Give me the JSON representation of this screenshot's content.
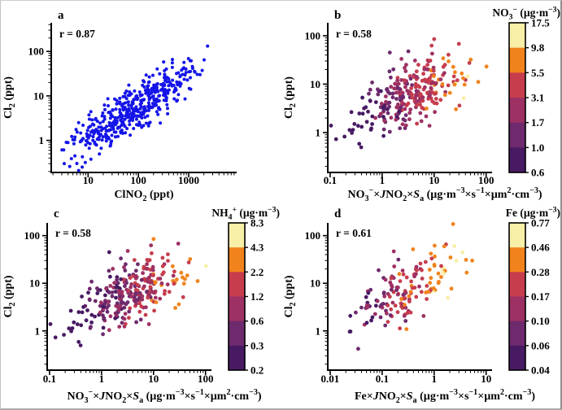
{
  "figure": {
    "background": "#ffffff",
    "axis_color": "#000000",
    "text_color": "#000000"
  },
  "palette": [
    "#471a63",
    "#6e2a6d",
    "#9d3163",
    "#c63d4d",
    "#f0831c",
    "#f8efa8"
  ],
  "chart_data": [
    {
      "id": "a",
      "type": "scatter",
      "row": "top",
      "letter": "a",
      "corr_label": "r = 0.87",
      "xlabel": [
        {
          "t": "ClNO"
        },
        {
          "t": "2",
          "sub": true
        },
        {
          "t": " (ppt)"
        }
      ],
      "ylabel": [
        {
          "t": "Cl"
        },
        {
          "t": "2",
          "sub": true
        },
        {
          "t": " (ppt)"
        }
      ],
      "xlim": [
        1.85,
        9000
      ],
      "ylim": [
        0.19,
        440
      ],
      "x_ticks": [
        {
          "v": 10,
          "label": "10"
        },
        {
          "v": 100,
          "label": "100"
        },
        {
          "v": 1000,
          "label": "1000"
        }
      ],
      "y_ticks": [
        {
          "v": 1,
          "label": "1"
        },
        {
          "v": 10,
          "label": "10"
        },
        {
          "v": 100,
          "label": "100"
        }
      ],
      "point_color": "#1414e8",
      "point_radius": 2.0,
      "cloud": {
        "n": 460,
        "seed": 101,
        "mx": 1.95,
        "sx": 0.62,
        "my": 0.72,
        "sy": 0.52,
        "r": 0.87
      },
      "colorbar": null,
      "color_rule": null
    },
    {
      "id": "b",
      "type": "scatter",
      "row": "top",
      "letter": "b",
      "corr_label": "r = 0.58",
      "xlabel": [
        {
          "t": "NO"
        },
        {
          "t": "3",
          "sub": true
        },
        {
          "t": "−",
          "sup": true
        },
        {
          "t": "×"
        },
        {
          "t": "J",
          "i": true
        },
        {
          "t": "NO"
        },
        {
          "t": "2",
          "sub": true
        },
        {
          "t": "×"
        },
        {
          "t": "S",
          "i": true
        },
        {
          "t": "a",
          "sub": true
        },
        {
          "t": " (µg·m"
        },
        {
          "t": "−3",
          "sup": true
        },
        {
          "t": "×s"
        },
        {
          "t": "−1",
          "sup": true
        },
        {
          "t": "×µm"
        },
        {
          "t": "2",
          "sup": true
        },
        {
          "t": "·cm"
        },
        {
          "t": "−3",
          "sup": true
        },
        {
          "t": ")"
        }
      ],
      "ylabel": [
        {
          "t": "Cl"
        },
        {
          "t": "2",
          "sub": true
        },
        {
          "t": " (ppt)"
        }
      ],
      "xlim": [
        0.09,
        130
      ],
      "ylim": [
        0.15,
        185
      ],
      "x_ticks": [
        {
          "v": 0.1,
          "label": "0.1"
        },
        {
          "v": 1,
          "label": "1"
        },
        {
          "v": 10,
          "label": "10"
        },
        {
          "v": 100,
          "label": "100"
        }
      ],
      "y_ticks": [
        {
          "v": 1,
          "label": "1"
        },
        {
          "v": 10,
          "label": "10"
        },
        {
          "v": 100,
          "label": "100"
        }
      ],
      "point_color": null,
      "point_radius": 2.4,
      "cloud": {
        "n": 280,
        "seed": 202,
        "mx": 0.52,
        "sx": 0.55,
        "my": 0.78,
        "sy": 0.4,
        "r": 0.58
      },
      "color_rule": {
        "seed": 7,
        "base": 0.02,
        "slope": 0.75,
        "noise": 0.38
      },
      "colorbar": {
        "title": [
          {
            "t": "NO"
          },
          {
            "t": "3",
            "sub": true
          },
          {
            "t": "−",
            "sup": true
          },
          {
            "t": " (µg·m"
          },
          {
            "t": "−3",
            "sup": true
          },
          {
            "t": ")"
          }
        ],
        "labels": [
          "17.5",
          "9.8",
          "5.5",
          "3.1",
          "1.7",
          "1.0",
          "0.6"
        ]
      }
    },
    {
      "id": "c",
      "type": "scatter",
      "row": "bottom",
      "letter": "c",
      "corr_label": "r = 0.58",
      "xlabel": [
        {
          "t": "NO"
        },
        {
          "t": "3",
          "sub": true
        },
        {
          "t": "−",
          "sup": true
        },
        {
          "t": "×"
        },
        {
          "t": "J",
          "i": true
        },
        {
          "t": "NO"
        },
        {
          "t": "2",
          "sub": true
        },
        {
          "t": "×"
        },
        {
          "t": "S",
          "i": true
        },
        {
          "t": "a",
          "sub": true
        },
        {
          "t": " (µg·m"
        },
        {
          "t": "−3",
          "sup": true
        },
        {
          "t": "×s"
        },
        {
          "t": "−1",
          "sup": true
        },
        {
          "t": "×µm"
        },
        {
          "t": "2",
          "sup": true
        },
        {
          "t": "·cm"
        },
        {
          "t": "−3",
          "sup": true
        },
        {
          "t": ")"
        }
      ],
      "ylabel": [
        {
          "t": "Cl"
        },
        {
          "t": "2",
          "sub": true
        },
        {
          "t": " (ppt)"
        }
      ],
      "xlim": [
        0.09,
        130
      ],
      "ylim": [
        0.15,
        185
      ],
      "x_ticks": [
        {
          "v": 0.1,
          "label": "0.1"
        },
        {
          "v": 1,
          "label": "1"
        },
        {
          "v": 10,
          "label": "10"
        },
        {
          "v": 100,
          "label": "100"
        }
      ],
      "y_ticks": [
        {
          "v": 1,
          "label": "1"
        },
        {
          "v": 10,
          "label": "10"
        },
        {
          "v": 100,
          "label": "100"
        }
      ],
      "point_color": null,
      "point_radius": 2.4,
      "cloud": {
        "n": 280,
        "seed": 202,
        "mx": 0.52,
        "sx": 0.55,
        "my": 0.78,
        "sy": 0.4,
        "r": 0.58
      },
      "color_rule": {
        "seed": 13,
        "base": 0.0,
        "slope": 0.72,
        "noise": 0.4
      },
      "colorbar": {
        "title": [
          {
            "t": "NH"
          },
          {
            "t": "4",
            "sub": true
          },
          {
            "t": "+",
            "sup": true
          },
          {
            "t": " (µg·m"
          },
          {
            "t": "−3",
            "sup": true
          },
          {
            "t": ")"
          }
        ],
        "labels": [
          "8.3",
          "4.3",
          "2.2",
          "1.2",
          "0.6",
          "0.3",
          "0.2"
        ]
      }
    },
    {
      "id": "d",
      "type": "scatter",
      "row": "bottom",
      "letter": "d",
      "corr_label": "r = 0.61",
      "xlabel": [
        {
          "t": "Fe×"
        },
        {
          "t": "J",
          "i": true
        },
        {
          "t": "NO"
        },
        {
          "t": "2",
          "sub": true
        },
        {
          "t": "×"
        },
        {
          "t": "S",
          "i": true
        },
        {
          "t": "a",
          "sub": true
        },
        {
          "t": " (µg·m"
        },
        {
          "t": "−3",
          "sup": true
        },
        {
          "t": "×s"
        },
        {
          "t": "−1",
          "sup": true
        },
        {
          "t": "×µm"
        },
        {
          "t": "2",
          "sup": true
        },
        {
          "t": "·cm"
        },
        {
          "t": "−3",
          "sup": true
        },
        {
          "t": ")"
        }
      ],
      "ylabel": [
        {
          "t": "Cl"
        },
        {
          "t": "2",
          "sub": true
        },
        {
          "t": " (ppt)"
        }
      ],
      "xlim": [
        0.009,
        13
      ],
      "ylim": [
        0.15,
        185
      ],
      "x_ticks": [
        {
          "v": 0.01,
          "label": "0.01"
        },
        {
          "v": 0.1,
          "label": "0.1"
        },
        {
          "v": 1,
          "label": "1"
        },
        {
          "v": 10,
          "label": "10"
        }
      ],
      "y_ticks": [
        {
          "v": 1,
          "label": "1"
        },
        {
          "v": 10,
          "label": "10"
        },
        {
          "v": 100,
          "label": "100"
        }
      ],
      "point_color": null,
      "point_radius": 2.4,
      "cloud": {
        "n": 160,
        "seed": 404,
        "mx": -0.58,
        "sx": 0.52,
        "my": 0.85,
        "sy": 0.48,
        "r": 0.61
      },
      "color_rule": {
        "seed": 21,
        "base": 0.1,
        "slope": 0.8,
        "noise": 0.45
      },
      "colorbar": {
        "title": [
          {
            "t": "Fe (µg·m"
          },
          {
            "t": "−3",
            "sup": true
          },
          {
            "t": ")"
          }
        ],
        "labels": [
          "0.77",
          "0.46",
          "0.28",
          "0.17",
          "0.10",
          "0.06",
          "0.04"
        ]
      }
    }
  ]
}
